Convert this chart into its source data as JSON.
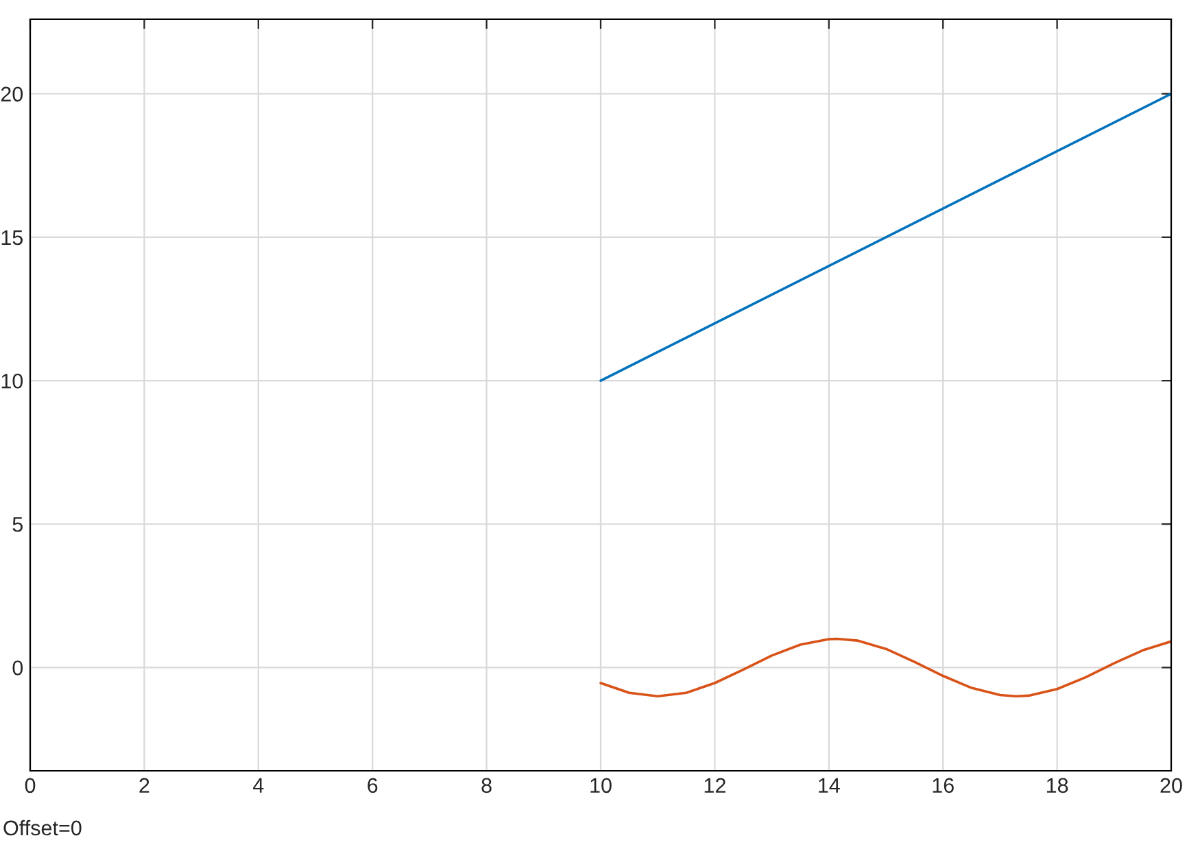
{
  "chart_data": {
    "type": "line",
    "xlim": [
      0,
      20
    ],
    "ylim": [
      -3.6,
      22.6
    ],
    "xticks": [
      0,
      2,
      4,
      6,
      8,
      10,
      12,
      14,
      16,
      18,
      20
    ],
    "yticks": [
      0,
      5,
      10,
      15,
      20
    ],
    "grid": true,
    "legend": false,
    "series": [
      {
        "color": "#0072bd",
        "x": [
          10,
          20
        ],
        "values": [
          10,
          20
        ]
      },
      {
        "color": "#d95319",
        "x": [
          10,
          10.5,
          11,
          11.5,
          12,
          12.5,
          13,
          13.5,
          14,
          14.14,
          14.5,
          15,
          15.5,
          16,
          16.5,
          17,
          17.28,
          17.5,
          18,
          18.5,
          19,
          19.5,
          20
        ],
        "values": [
          -0.54,
          -0.88,
          -1.0,
          -0.88,
          -0.54,
          -0.07,
          0.42,
          0.8,
          0.99,
          1.0,
          0.94,
          0.65,
          0.2,
          -0.29,
          -0.71,
          -0.96,
          -1.0,
          -0.98,
          -0.75,
          -0.34,
          0.15,
          0.6,
          0.91
        ]
      }
    ],
    "annotations": [
      "Offset=0"
    ]
  }
}
